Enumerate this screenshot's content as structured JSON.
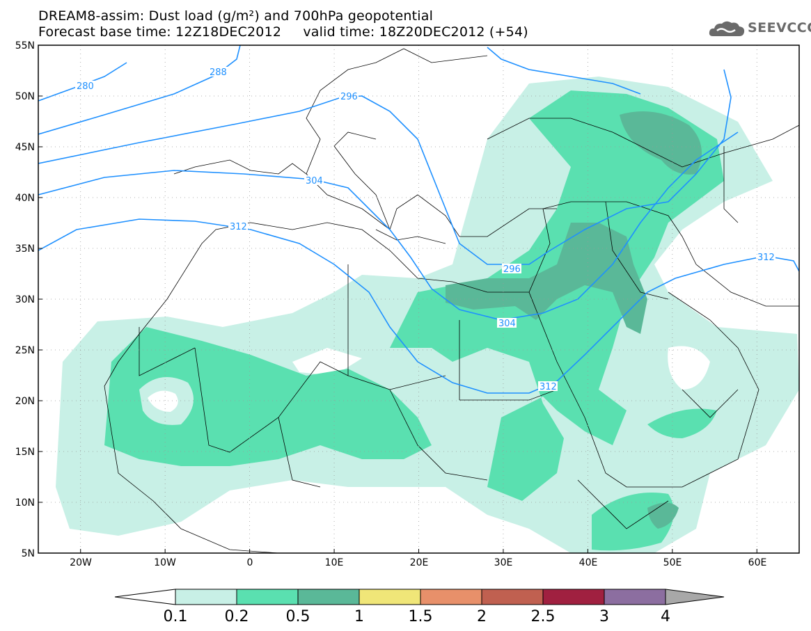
{
  "header": {
    "title_line1": "DREAM8-assim: Dust load (g/m²) and 700hPa geopotential",
    "title_line2": "Forecast base time: 12Z18DEC2012     valid time: 18Z20DEC2012 (+54)"
  },
  "logo": {
    "text": "SEEVCCC",
    "icon": "cloud-icon"
  },
  "map": {
    "lat_range": [
      5,
      55
    ],
    "lon_range": [
      -25,
      65
    ],
    "lat_labels": [
      "55N",
      "50N",
      "45N",
      "40N",
      "35N",
      "30N",
      "25N",
      "20N",
      "15N",
      "10N",
      "5N"
    ],
    "lon_labels": [
      "20W",
      "10W",
      "0",
      "10E",
      "20E",
      "30E",
      "40E",
      "50E",
      "60E"
    ],
    "contour_color": "#1e90ff",
    "contour_labels": [
      "280",
      "288",
      "296",
      "304",
      "312",
      "296",
      "304",
      "312",
      "312"
    ]
  },
  "colorbar": {
    "colors": [
      "#c8f0e6",
      "#5ae0b0",
      "#5ab898",
      "#f0e678",
      "#e8906a",
      "#c06050",
      "#a02040",
      "#8c6ea0"
    ],
    "labels": [
      "0.1",
      "0.2",
      "0.5",
      "1",
      "1.5",
      "2",
      "2.5",
      "3",
      "4"
    ]
  }
}
